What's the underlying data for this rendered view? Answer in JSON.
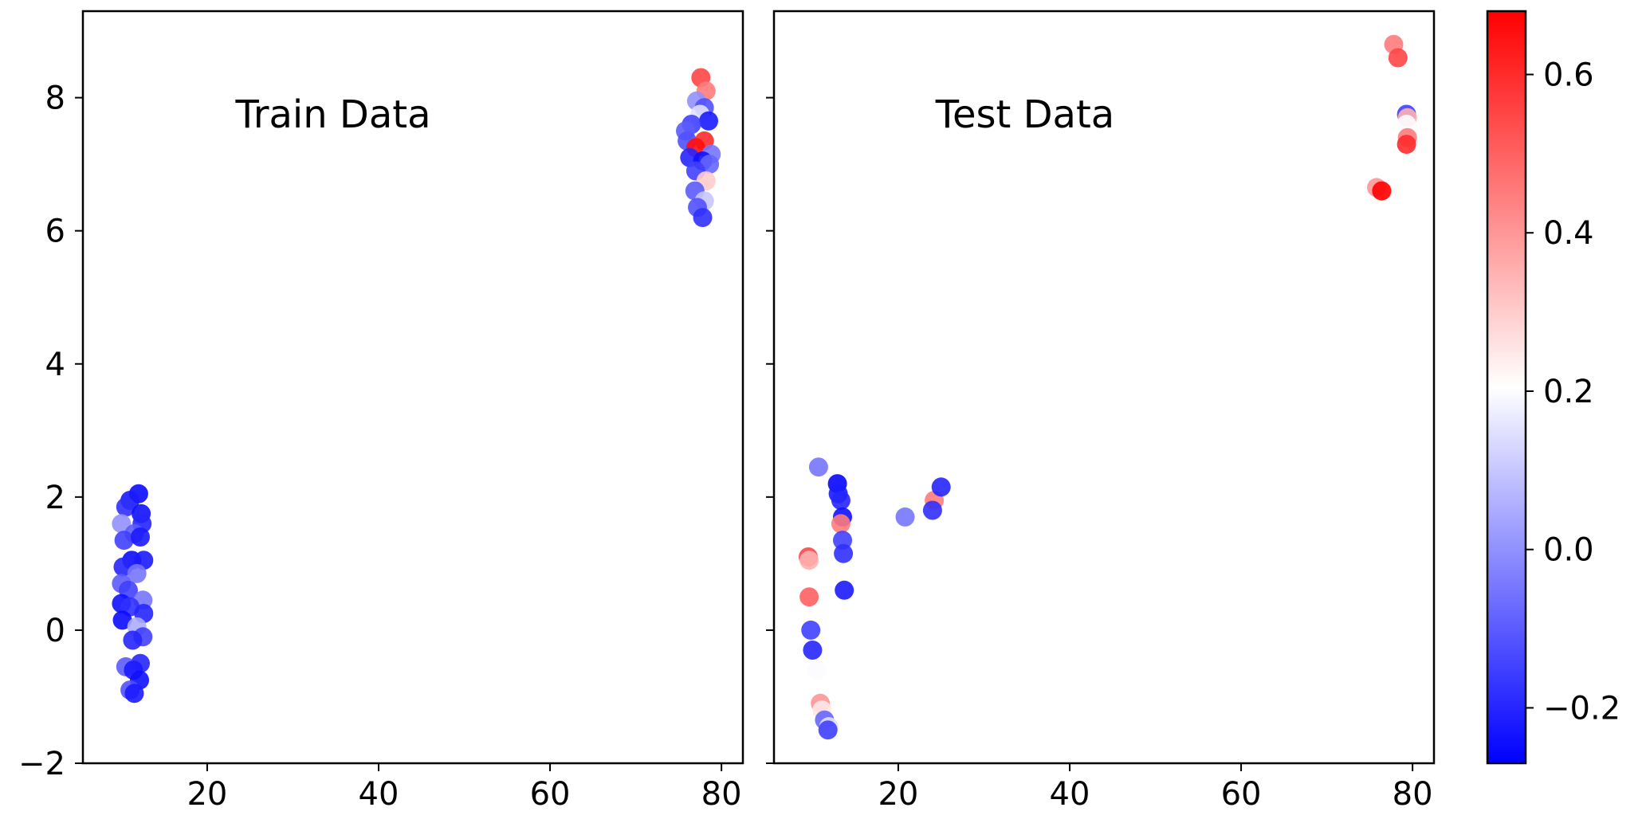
{
  "chart_data": [
    {
      "type": "scatter",
      "title": "Train Data",
      "xlim": [
        5.5,
        82.5
      ],
      "ylim": [
        -2,
        9.3
      ],
      "xticks": [
        "20",
        "40",
        "60",
        "80"
      ],
      "yticks": [
        "−2",
        "0",
        "2",
        "4",
        "6",
        "8"
      ],
      "points": [
        {
          "x": 12.0,
          "y": 2.05,
          "c": -0.25
        },
        {
          "x": 11.0,
          "y": 1.95,
          "c": -0.22
        },
        {
          "x": 10.5,
          "y": 1.85,
          "c": -0.18
        },
        {
          "x": 12.3,
          "y": 1.75,
          "c": -0.24
        },
        {
          "x": 10.0,
          "y": 1.6,
          "c": 0.0
        },
        {
          "x": 12.4,
          "y": 1.6,
          "c": -0.2
        },
        {
          "x": 11.5,
          "y": 1.45,
          "c": -0.1
        },
        {
          "x": 10.3,
          "y": 1.35,
          "c": -0.15
        },
        {
          "x": 12.2,
          "y": 1.4,
          "c": -0.22
        },
        {
          "x": 11.2,
          "y": 1.05,
          "c": -0.25
        },
        {
          "x": 12.6,
          "y": 1.05,
          "c": -0.22
        },
        {
          "x": 10.2,
          "y": 0.95,
          "c": -0.2
        },
        {
          "x": 11.8,
          "y": 0.85,
          "c": -0.05
        },
        {
          "x": 10.0,
          "y": 0.7,
          "c": -0.1
        },
        {
          "x": 10.8,
          "y": 0.6,
          "c": -0.15
        },
        {
          "x": 12.5,
          "y": 0.45,
          "c": -0.05
        },
        {
          "x": 10.0,
          "y": 0.4,
          "c": -0.24
        },
        {
          "x": 11.0,
          "y": 0.35,
          "c": -0.18
        },
        {
          "x": 12.6,
          "y": 0.25,
          "c": -0.2
        },
        {
          "x": 10.1,
          "y": 0.15,
          "c": -0.25
        },
        {
          "x": 11.8,
          "y": 0.05,
          "c": 0.05
        },
        {
          "x": 12.5,
          "y": -0.1,
          "c": -0.15
        },
        {
          "x": 11.3,
          "y": -0.15,
          "c": -0.2
        },
        {
          "x": 12.2,
          "y": -0.5,
          "c": -0.2
        },
        {
          "x": 10.5,
          "y": -0.55,
          "c": -0.1
        },
        {
          "x": 11.4,
          "y": -0.6,
          "c": -0.22
        },
        {
          "x": 12.1,
          "y": -0.75,
          "c": -0.24
        },
        {
          "x": 11.0,
          "y": -0.9,
          "c": -0.12
        },
        {
          "x": 11.5,
          "y": -0.95,
          "c": -0.22
        },
        {
          "x": 77.6,
          "y": 8.3,
          "c": 0.55
        },
        {
          "x": 78.2,
          "y": 8.1,
          "c": 0.45
        },
        {
          "x": 77.1,
          "y": 7.95,
          "c": 0.0
        },
        {
          "x": 78.0,
          "y": 7.85,
          "c": -0.12
        },
        {
          "x": 77.5,
          "y": 7.75,
          "c": 0.15
        },
        {
          "x": 78.5,
          "y": 7.65,
          "c": -0.22
        },
        {
          "x": 76.5,
          "y": 7.6,
          "c": -0.15
        },
        {
          "x": 75.8,
          "y": 7.5,
          "c": -0.1
        },
        {
          "x": 76.0,
          "y": 7.35,
          "c": -0.12
        },
        {
          "x": 78.0,
          "y": 7.35,
          "c": 0.6
        },
        {
          "x": 77.0,
          "y": 7.25,
          "c": 0.65
        },
        {
          "x": 78.8,
          "y": 7.15,
          "c": -0.05
        },
        {
          "x": 76.3,
          "y": 7.1,
          "c": -0.2
        },
        {
          "x": 77.8,
          "y": 7.05,
          "c": -0.24
        },
        {
          "x": 78.6,
          "y": 7.0,
          "c": -0.08
        },
        {
          "x": 77.0,
          "y": 6.9,
          "c": -0.15
        },
        {
          "x": 78.2,
          "y": 6.75,
          "c": 0.3
        },
        {
          "x": 76.9,
          "y": 6.6,
          "c": -0.1
        },
        {
          "x": 78.0,
          "y": 6.45,
          "c": 0.1
        },
        {
          "x": 77.2,
          "y": 6.35,
          "c": -0.12
        },
        {
          "x": 77.8,
          "y": 6.2,
          "c": -0.18
        }
      ]
    },
    {
      "type": "scatter",
      "title": "Test Data",
      "xlim": [
        5.5,
        82.5
      ],
      "ylim": [
        -2,
        9.3
      ],
      "xticks": [
        "20",
        "40",
        "60",
        "80"
      ],
      "points": [
        {
          "x": 10.7,
          "y": 2.45,
          "c": -0.05
        },
        {
          "x": 12.9,
          "y": 2.2,
          "c": -0.26
        },
        {
          "x": 13.0,
          "y": 2.05,
          "c": -0.22
        },
        {
          "x": 13.3,
          "y": 1.95,
          "c": -0.2
        },
        {
          "x": 13.5,
          "y": 1.7,
          "c": -0.24
        },
        {
          "x": 13.3,
          "y": 1.6,
          "c": 0.45
        },
        {
          "x": 13.5,
          "y": 1.35,
          "c": -0.15
        },
        {
          "x": 13.6,
          "y": 1.15,
          "c": -0.18
        },
        {
          "x": 13.7,
          "y": 0.6,
          "c": -0.22
        },
        {
          "x": 9.5,
          "y": 1.1,
          "c": 0.55
        },
        {
          "x": 9.6,
          "y": 1.05,
          "c": 0.35
        },
        {
          "x": 9.6,
          "y": 0.5,
          "c": 0.5
        },
        {
          "x": 9.8,
          "y": 0.0,
          "c": -0.15
        },
        {
          "x": 10.0,
          "y": -0.3,
          "c": -0.2
        },
        {
          "x": 10.5,
          "y": -0.6,
          "c": 0.2
        },
        {
          "x": 10.9,
          "y": -1.1,
          "c": 0.4
        },
        {
          "x": 11.1,
          "y": -1.2,
          "c": 0.25
        },
        {
          "x": 11.4,
          "y": -1.35,
          "c": -0.08
        },
        {
          "x": 11.9,
          "y": -1.45,
          "c": 0.15
        },
        {
          "x": 11.8,
          "y": -1.5,
          "c": -0.15
        },
        {
          "x": 20.8,
          "y": 1.7,
          "c": -0.05
        },
        {
          "x": 24.2,
          "y": 1.95,
          "c": 0.45
        },
        {
          "x": 24.0,
          "y": 1.8,
          "c": -0.18
        },
        {
          "x": 25.0,
          "y": 2.15,
          "c": -0.2
        },
        {
          "x": 77.8,
          "y": 8.8,
          "c": 0.45
        },
        {
          "x": 78.3,
          "y": 8.6,
          "c": 0.55
        },
        {
          "x": 79.3,
          "y": 7.75,
          "c": -0.15
        },
        {
          "x": 79.4,
          "y": 7.7,
          "c": 0.35
        },
        {
          "x": 79.3,
          "y": 7.6,
          "c": 0.2
        },
        {
          "x": 79.4,
          "y": 7.4,
          "c": 0.45
        },
        {
          "x": 79.3,
          "y": 7.3,
          "c": 0.6
        },
        {
          "x": 75.8,
          "y": 6.65,
          "c": 0.4
        },
        {
          "x": 76.4,
          "y": 6.6,
          "c": 0.68
        }
      ]
    }
  ],
  "colorbar": {
    "cmap": "bwr",
    "range": [
      -0.27,
      0.68
    ],
    "ticks": [
      {
        "value": 0.6,
        "label": "0.6"
      },
      {
        "value": 0.4,
        "label": "0.4"
      },
      {
        "value": 0.2,
        "label": "0.2"
      },
      {
        "value": 0.0,
        "label": "0.0"
      },
      {
        "value": -0.2,
        "label": "−0.2"
      }
    ],
    "colors": {
      "low": "#0000ff",
      "mid": "#ffffff",
      "high": "#ff0000"
    }
  }
}
